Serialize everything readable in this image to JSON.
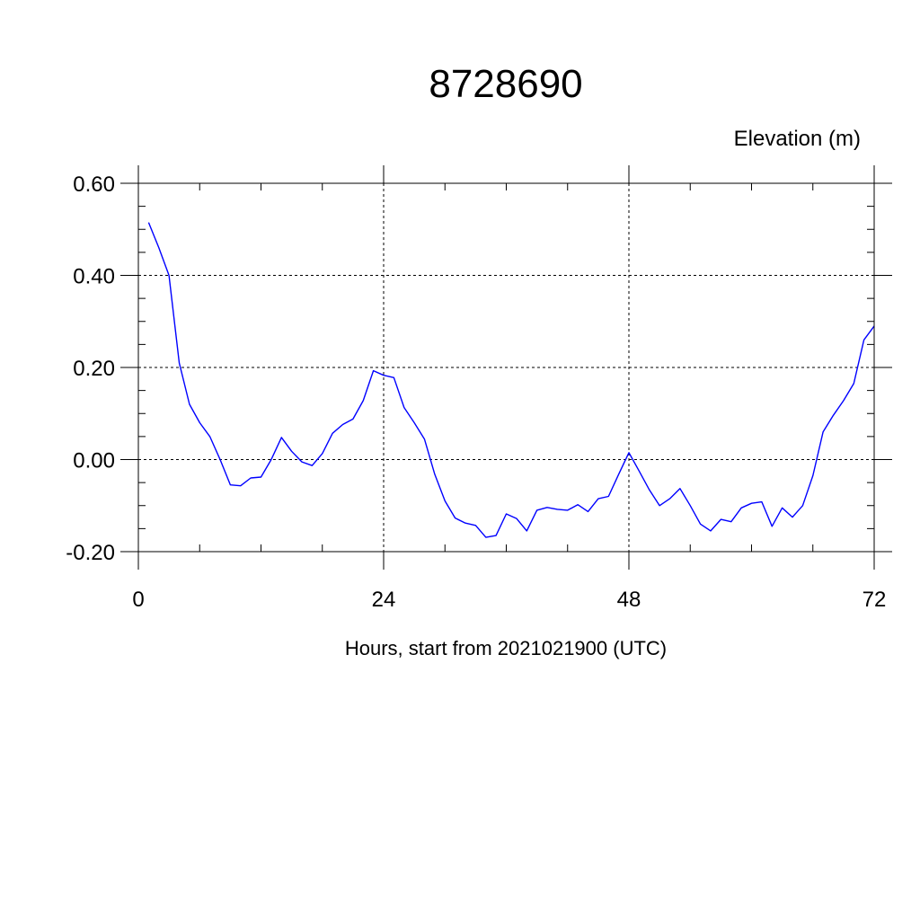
{
  "chart_data": {
    "type": "line",
    "title": "8728690",
    "ylabel": "Elevation (m)",
    "xlabel": "Hours, start from 2021021900 (UTC)",
    "xlim": [
      0,
      72
    ],
    "ylim": [
      -0.2,
      0.6
    ],
    "xticks": [
      0,
      24,
      48,
      72
    ],
    "xtick_labels": [
      "0",
      "24",
      "48",
      "72"
    ],
    "yticks": [
      -0.2,
      0.0,
      0.2,
      0.4,
      0.6
    ],
    "ytick_labels": [
      "-0.20",
      "0.00",
      "0.20",
      "0.40",
      "0.60"
    ],
    "grid": true,
    "line_color": "#0000ff",
    "series": [
      {
        "x": [
          1,
          2,
          3,
          4,
          5,
          6,
          7,
          8,
          9,
          10,
          11,
          12,
          13,
          14,
          15,
          16,
          17,
          18,
          19,
          20,
          21,
          22,
          23,
          24,
          25,
          26,
          27,
          28,
          29,
          30,
          31,
          32,
          33,
          34,
          35,
          36,
          37,
          38,
          39,
          40,
          41,
          42,
          43,
          44,
          45,
          46,
          47,
          48,
          49,
          50,
          51,
          52,
          53,
          54,
          55,
          56,
          57,
          58,
          59,
          60,
          61,
          62,
          63,
          64,
          65,
          66,
          67,
          68,
          69,
          70,
          71,
          72
        ],
        "values": [
          0.515,
          0.46,
          0.4,
          0.21,
          0.12,
          0.08,
          0.05,
          0.0,
          -0.055,
          -0.057,
          -0.04,
          -0.038,
          0.0,
          0.048,
          0.018,
          -0.005,
          -0.013,
          0.013,
          0.057,
          0.076,
          0.088,
          0.128,
          0.193,
          0.183,
          0.178,
          0.113,
          0.08,
          0.044,
          -0.032,
          -0.09,
          -0.127,
          -0.138,
          -0.143,
          -0.169,
          -0.165,
          -0.118,
          -0.128,
          -0.155,
          -0.11,
          -0.104,
          -0.108,
          -0.11,
          -0.098,
          -0.113,
          -0.085,
          -0.08,
          -0.032,
          0.015,
          -0.025,
          -0.066,
          -0.1,
          -0.085,
          -0.063,
          -0.1,
          -0.14,
          -0.155,
          -0.13,
          -0.135,
          -0.105,
          -0.095,
          -0.092,
          -0.145,
          -0.105,
          -0.125,
          -0.1,
          -0.035,
          0.06,
          0.096,
          0.128,
          0.165,
          0.26,
          0.29
        ]
      }
    ]
  }
}
